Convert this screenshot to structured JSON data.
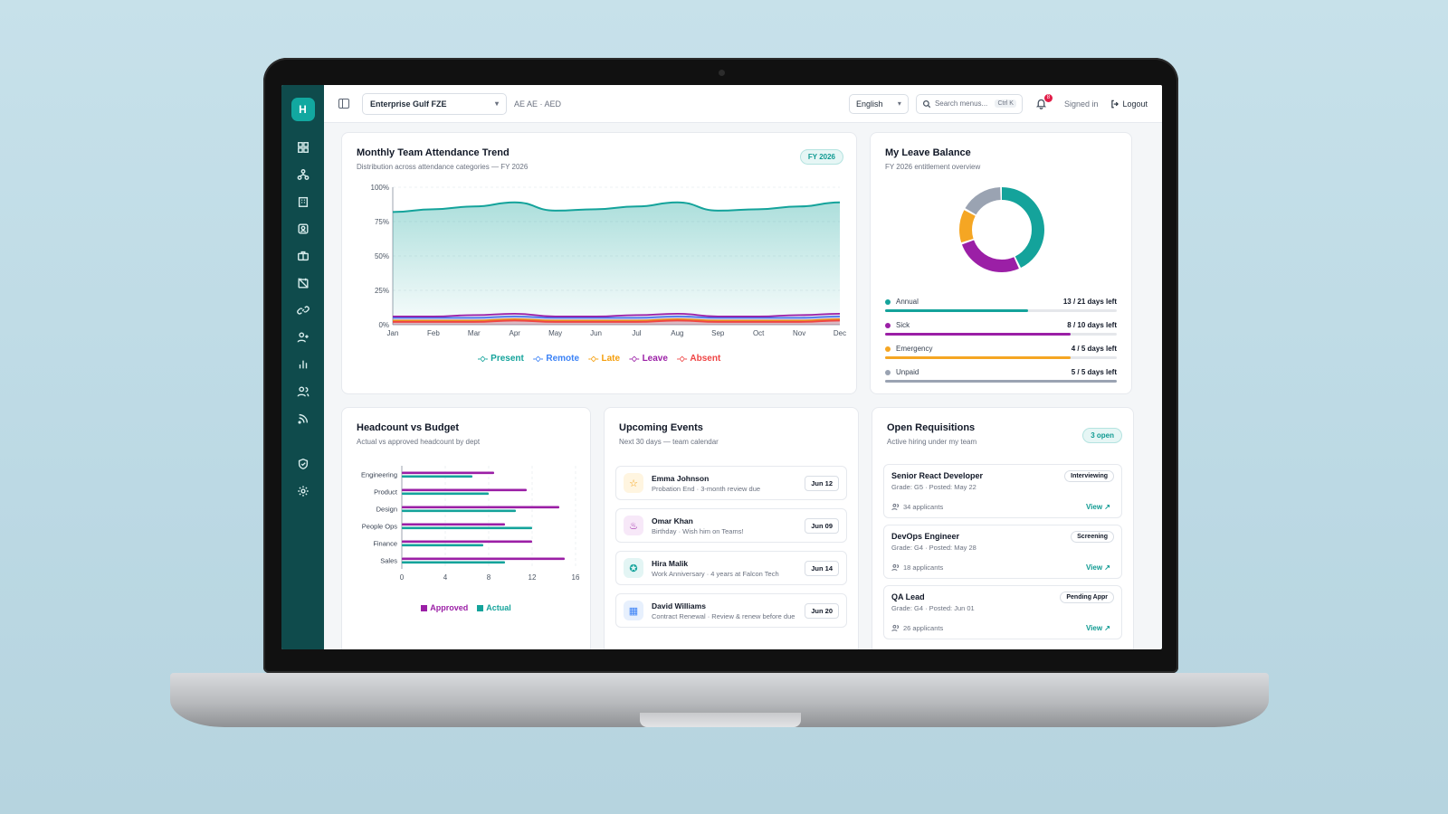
{
  "app": {
    "logo_letter": "H"
  },
  "topbar": {
    "company": "Enterprise Gulf FZE",
    "locale": "AE AE · AED",
    "language": "English",
    "search_placeholder": "Search menus...",
    "search_shortcut": "Ctrl K",
    "notification_count": "8",
    "signed_in": "Signed in",
    "logout": "Logout"
  },
  "sidebar": {
    "items": [
      "dashboard-icon",
      "org-chart-icon",
      "building-icon",
      "contact-icon",
      "briefcase-icon",
      "calendar-off-icon",
      "link-icon",
      "user-plus-icon",
      "bar-chart-icon",
      "users-icon",
      "rss-icon",
      "shield-icon",
      "gear-icon"
    ]
  },
  "attendance": {
    "title": "Monthly Team Attendance Trend",
    "subtitle": "Distribution across attendance categories — FY 2026",
    "pill": "FY 2026",
    "chart_data": {
      "type": "area",
      "categories": [
        "Jan",
        "Feb",
        "Mar",
        "Apr",
        "May",
        "Jun",
        "Jul",
        "Aug",
        "Sep",
        "Oct",
        "Nov",
        "Dec"
      ],
      "y_ticks": [
        "0%",
        "25%",
        "50%",
        "75%",
        "100%"
      ],
      "ylim": [
        0,
        100
      ],
      "series": [
        {
          "name": "Present",
          "color": "#14a39b",
          "values": [
            82,
            84,
            86,
            89,
            83,
            84,
            86,
            89,
            83,
            84,
            86,
            89
          ]
        },
        {
          "name": "Remote",
          "color": "#3b82f6",
          "values": [
            5,
            5,
            5,
            6,
            5,
            5,
            5,
            6,
            5,
            5,
            5,
            6
          ]
        },
        {
          "name": "Late",
          "color": "#f59e0b",
          "values": [
            3,
            3,
            3,
            4,
            3,
            3,
            3,
            4,
            3,
            3,
            3,
            4
          ]
        },
        {
          "name": "Leave",
          "color": "#9b1fa6",
          "values": [
            6,
            6,
            7,
            8,
            6,
            6,
            7,
            8,
            6,
            6,
            7,
            8
          ]
        },
        {
          "name": "Absent",
          "color": "#ef4444",
          "values": [
            2,
            2,
            2,
            3,
            2,
            2,
            2,
            3,
            2,
            2,
            2,
            3
          ]
        }
      ]
    }
  },
  "leave": {
    "title": "My Leave Balance",
    "subtitle": "FY 2026 entitlement overview",
    "items": [
      {
        "label": "Annual",
        "value": "13 / 21 days left",
        "left": 13,
        "total": 21,
        "color": "#14a39b"
      },
      {
        "label": "Sick",
        "value": "8 / 10 days left",
        "left": 8,
        "total": 10,
        "color": "#9b1fa6"
      },
      {
        "label": "Emergency",
        "value": "4 / 5 days left",
        "left": 4,
        "total": 5,
        "color": "#f5a623"
      },
      {
        "label": "Unpaid",
        "value": "5 / 5 days left",
        "left": 5,
        "total": 5,
        "color": "#9aa3b2"
      }
    ]
  },
  "headcount": {
    "title": "Headcount vs Budget",
    "subtitle": "Actual vs approved headcount by dept",
    "chart_data": {
      "type": "bar",
      "categories": [
        "Engineering",
        "Product",
        "Design",
        "People Ops",
        "Finance",
        "Sales"
      ],
      "x_ticks": [
        "0",
        "4",
        "8",
        "12",
        "16"
      ],
      "xlim": [
        0,
        16
      ],
      "series": [
        {
          "name": "Approved",
          "color": "#9b1fa6",
          "values": [
            8.5,
            11.5,
            14.5,
            9.5,
            12,
            15
          ]
        },
        {
          "name": "Actual",
          "color": "#14a39b",
          "values": [
            6.5,
            8,
            10.5,
            12,
            7.5,
            9.5
          ]
        }
      ]
    }
  },
  "events": {
    "title": "Upcoming Events",
    "subtitle": "Next 30 days — team calendar",
    "items": [
      {
        "name": "Emma Johnson",
        "desc": "Probation End · 3-month review due",
        "date": "Jun 12",
        "icon": "star-icon"
      },
      {
        "name": "Omar Khan",
        "desc": "Birthday · Wish him on Teams!",
        "date": "Jun 09",
        "icon": "cake-icon"
      },
      {
        "name": "Hira Malik",
        "desc": "Work Anniversary · 4 years at Falcon Tech",
        "date": "Jun 14",
        "icon": "award-icon"
      },
      {
        "name": "David Williams",
        "desc": "Contract Renewal · Review & renew before due",
        "date": "Jun 20",
        "icon": "calendar-icon"
      }
    ]
  },
  "requisitions": {
    "title": "Open Requisitions",
    "subtitle": "Active hiring under my team",
    "pill": "3 open",
    "items": [
      {
        "title": "Senior React Developer",
        "meta": "Grade: G5 · Posted: May 22",
        "status": "Interviewing",
        "applicants": "34 applicants",
        "view": "View"
      },
      {
        "title": "DevOps Engineer",
        "meta": "Grade: G4 · Posted: May 28",
        "status": "Screening",
        "applicants": "18 applicants",
        "view": "View"
      },
      {
        "title": "QA Lead",
        "meta": "Grade: G4 · Posted: Jun 01",
        "status": "Pending Appr",
        "applicants": "26 applicants",
        "view": "View"
      }
    ]
  }
}
